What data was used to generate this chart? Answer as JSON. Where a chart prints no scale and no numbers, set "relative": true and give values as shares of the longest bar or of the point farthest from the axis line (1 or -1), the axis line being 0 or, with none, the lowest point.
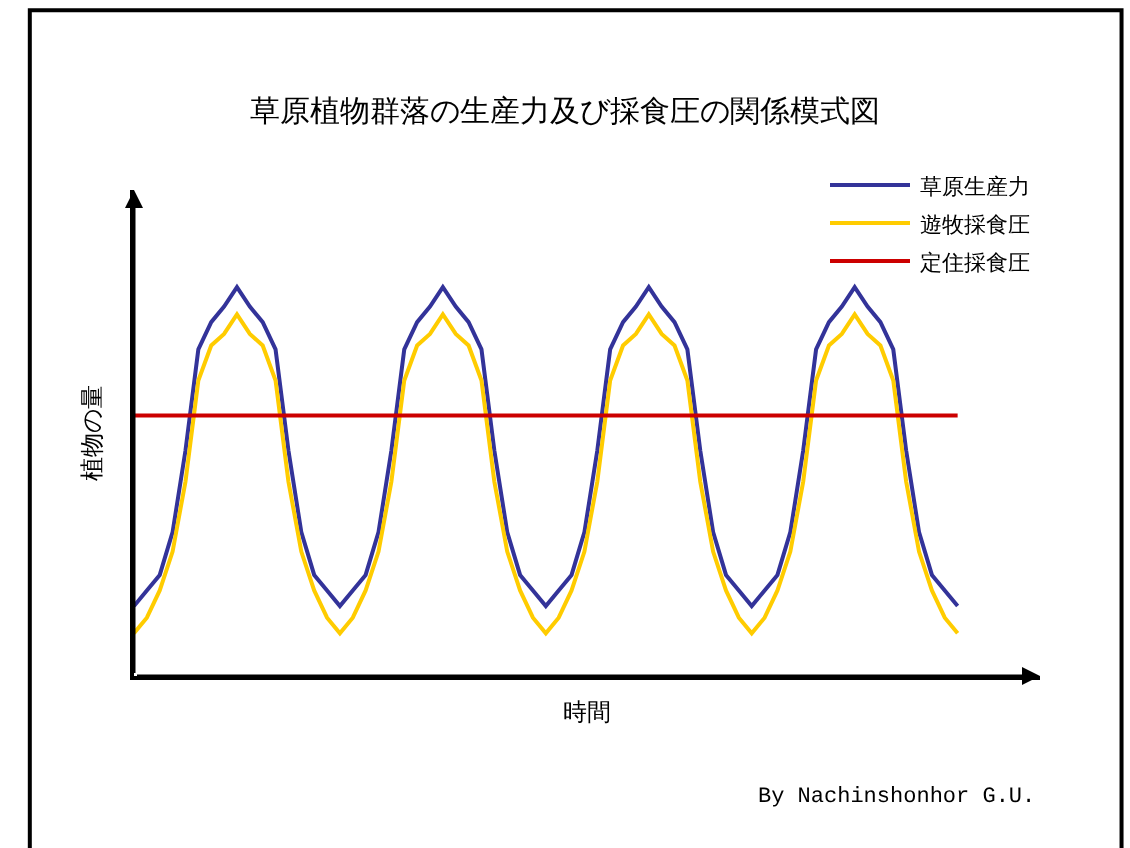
{
  "chart_data": {
    "type": "line",
    "title": "草原植物群落の生産力及び採食圧の関係模式図",
    "xlabel": "時間",
    "ylabel": "植物の量",
    "relative": true,
    "legend": "top right",
    "marker": "none",
    "line_style": "solid",
    "annotations": [
      "By Nachinshonhor G.U."
    ],
    "categories": [
      null,
      null,
      null,
      null,
      null,
      null,
      null,
      null,
      null,
      null,
      null,
      null,
      null,
      null,
      null,
      null,
      null,
      null,
      null,
      null,
      null,
      null,
      null,
      null,
      null,
      null,
      null,
      null,
      null,
      null,
      null,
      null,
      null,
      null,
      null,
      null,
      null,
      null,
      null,
      null,
      null,
      null,
      null,
      null,
      null,
      null,
      null,
      null,
      null,
      null,
      null,
      null,
      null,
      null,
      null,
      null,
      null,
      null,
      null,
      null,
      null,
      null,
      null,
      null,
      null
    ],
    "series": [
      {
        "name": "草原生産力",
        "color": "#333399",
        "values": [
          0.18,
          0.22,
          0.26,
          0.37,
          0.58,
          0.84,
          0.91,
          0.95,
          1.0,
          0.95,
          0.91,
          0.84,
          0.58,
          0.37,
          0.26,
          0.22,
          0.18,
          0.22,
          0.26,
          0.37,
          0.58,
          0.84,
          0.91,
          0.95,
          1.0,
          0.95,
          0.91,
          0.84,
          0.58,
          0.37,
          0.26,
          0.22,
          0.18,
          0.22,
          0.26,
          0.37,
          0.58,
          0.84,
          0.91,
          0.95,
          1.0,
          0.95,
          0.91,
          0.84,
          0.58,
          0.37,
          0.26,
          0.22,
          0.18,
          0.22,
          0.26,
          0.37,
          0.58,
          0.84,
          0.91,
          0.95,
          1.0,
          0.95,
          0.91,
          0.84,
          0.58,
          0.37,
          0.26,
          0.22,
          0.18
        ]
      },
      {
        "name": "遊牧採食圧",
        "color": "#ffcc00",
        "values": [
          0.11,
          0.15,
          0.22,
          0.32,
          0.5,
          0.76,
          0.85,
          0.88,
          0.93,
          0.88,
          0.85,
          0.76,
          0.5,
          0.32,
          0.22,
          0.15,
          0.11,
          0.15,
          0.22,
          0.32,
          0.5,
          0.76,
          0.85,
          0.88,
          0.93,
          0.88,
          0.85,
          0.76,
          0.5,
          0.32,
          0.22,
          0.15,
          0.11,
          0.15,
          0.22,
          0.32,
          0.5,
          0.76,
          0.85,
          0.88,
          0.93,
          0.88,
          0.85,
          0.76,
          0.5,
          0.32,
          0.22,
          0.15,
          0.11,
          0.15,
          0.22,
          0.32,
          0.5,
          0.76,
          0.85,
          0.88,
          0.93,
          0.88,
          0.85,
          0.76,
          0.5,
          0.32,
          0.22,
          0.15,
          0.11
        ]
      },
      {
        "name": "定住採食圧",
        "color": "#cc0000",
        "values": [
          0.67,
          0.67,
          0.67,
          0.67,
          0.67,
          0.67,
          0.67,
          0.67,
          0.67,
          0.67,
          0.67,
          0.67,
          0.67,
          0.67,
          0.67,
          0.67,
          0.67,
          0.67,
          0.67,
          0.67,
          0.67,
          0.67,
          0.67,
          0.67,
          0.67,
          0.67,
          0.67,
          0.67,
          0.67,
          0.67,
          0.67,
          0.67,
          0.67,
          0.67,
          0.67,
          0.67,
          0.67,
          0.67,
          0.67,
          0.67,
          0.67,
          0.67,
          0.67,
          0.67,
          0.67,
          0.67,
          0.67,
          0.67,
          0.67,
          0.67,
          0.67,
          0.67,
          0.67,
          0.67,
          0.67,
          0.67,
          0.67,
          0.67,
          0.67,
          0.67,
          0.67,
          0.67,
          0.67,
          0.67,
          0.67
        ]
      }
    ]
  }
}
